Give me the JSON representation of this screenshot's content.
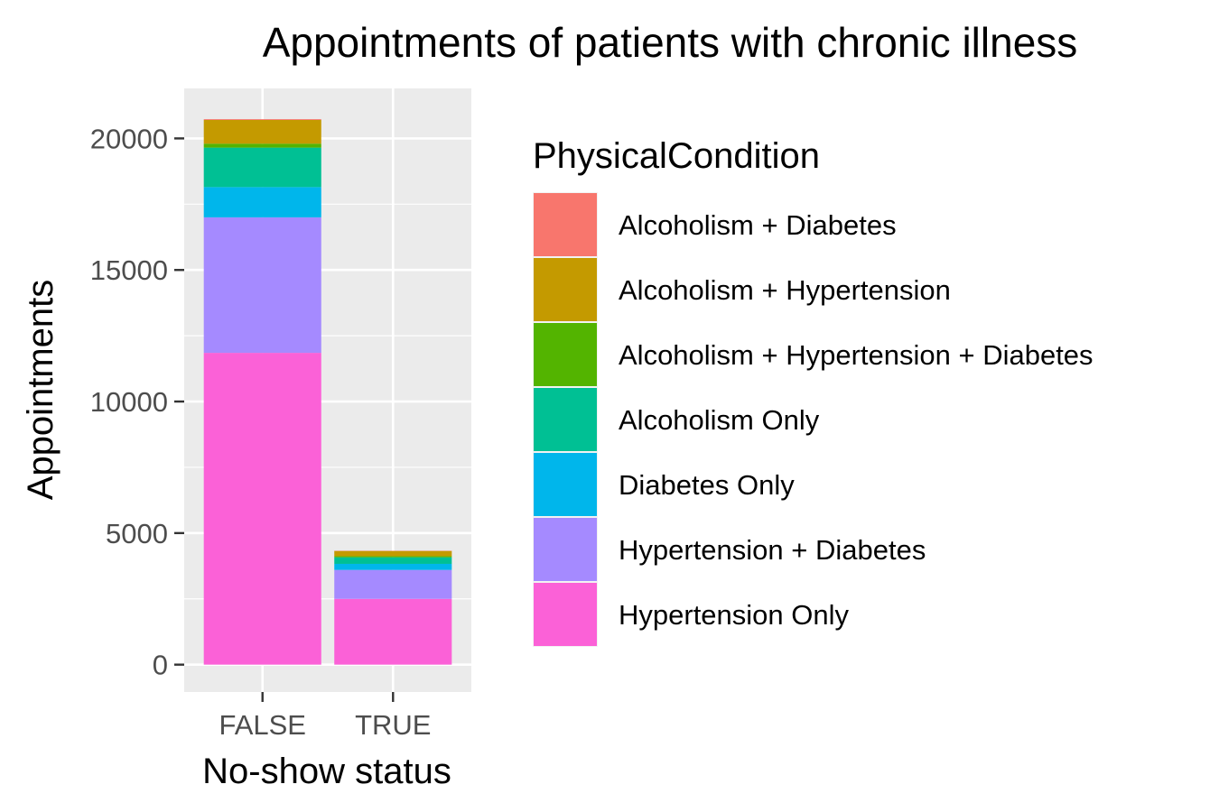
{
  "chart_data": {
    "type": "bar",
    "stacked": true,
    "title": "Appointments of patients with chronic illness",
    "xlabel": "No-show status",
    "ylabel": "Appointments",
    "categories": [
      "FALSE",
      "TRUE"
    ],
    "ylim": [
      -1040,
      21900
    ],
    "yticks": [
      0,
      5000,
      10000,
      15000,
      20000
    ],
    "ytick_labels": [
      "0",
      "5000",
      "10000",
      "15000",
      "20000"
    ],
    "grid": true,
    "legend": {
      "title": "PhysicalCondition",
      "position": "right"
    },
    "series": [
      {
        "name": "Alcoholism + Diabetes",
        "color": "#F8766D",
        "values": [
          30,
          10
        ]
      },
      {
        "name": "Alcoholism + Hypertension",
        "color": "#C49A00",
        "values": [
          900,
          200
        ]
      },
      {
        "name": "Alcoholism + Hypertension + Diabetes",
        "color": "#53B400",
        "values": [
          150,
          40
        ]
      },
      {
        "name": "Alcoholism Only",
        "color": "#00C094",
        "values": [
          1500,
          250
        ]
      },
      {
        "name": "Diabetes Only",
        "color": "#00B6EB",
        "values": [
          1150,
          230
        ]
      },
      {
        "name": "Hypertension + Diabetes",
        "color": "#A58AFF",
        "values": [
          5150,
          1100
        ]
      },
      {
        "name": "Hypertension Only",
        "color": "#FB61D7",
        "values": [
          11850,
          2500
        ]
      }
    ]
  }
}
